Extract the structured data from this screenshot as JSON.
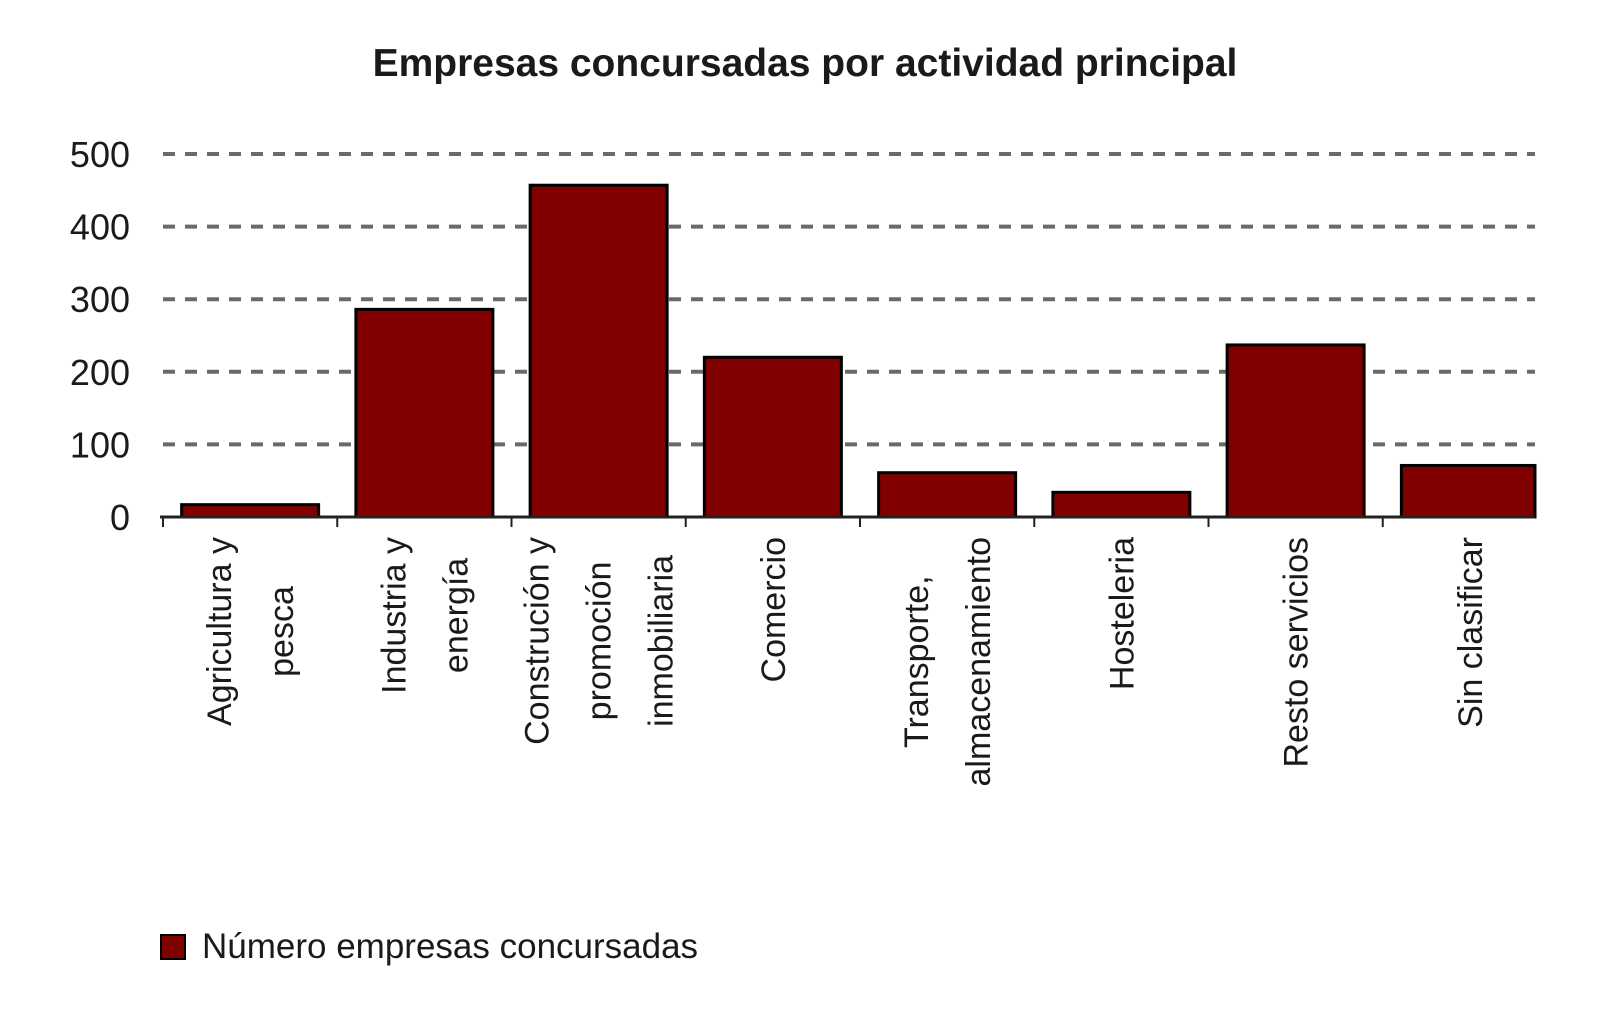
{
  "chart_data": {
    "type": "bar",
    "title": "Empresas concursadas por actividad principal",
    "xlabel": "",
    "ylabel": "",
    "ylim": [
      0,
      500
    ],
    "yticks": [
      0,
      100,
      200,
      300,
      400,
      500
    ],
    "grid": true,
    "legend_position": "bottom-left",
    "categories": [
      [
        "Agricultura y",
        "pesca"
      ],
      [
        "Industria y",
        "energía"
      ],
      [
        "Construción y",
        "promoción",
        "inmobiliaria"
      ],
      [
        "Comercio"
      ],
      [
        "Transporte,",
        "almacenamiento"
      ],
      [
        "Hosteleria"
      ],
      [
        "Resto servicios"
      ],
      [
        "Sin clasificar"
      ]
    ],
    "series": [
      {
        "name": "Número empresas concursadas",
        "color": "#800000",
        "values": [
          17,
          286,
          457,
          220,
          61,
          34,
          237,
          71
        ]
      }
    ]
  }
}
